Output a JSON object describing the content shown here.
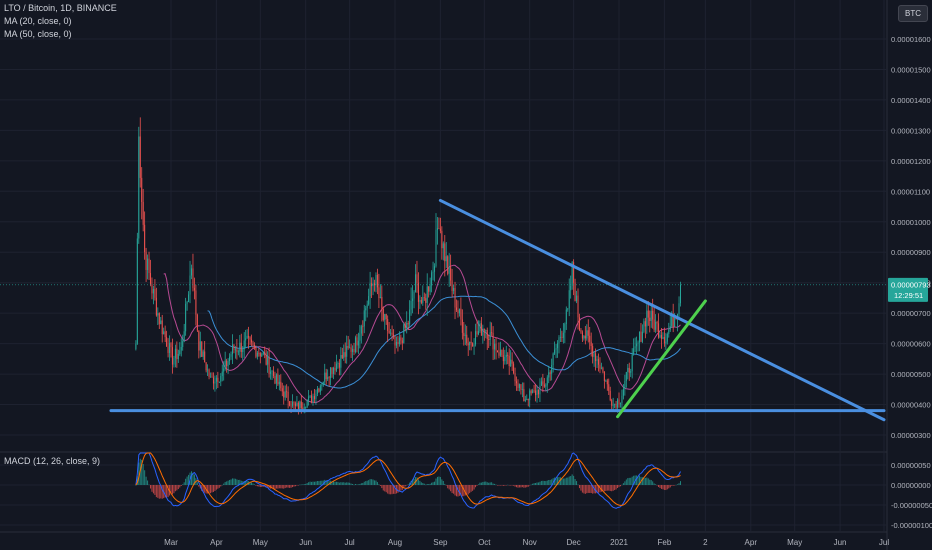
{
  "header": {
    "symbol_title": "LTO / Bitcoin, 1D, BINANCE",
    "ma20_label": "MA (20, close, 0)",
    "ma50_label": "MA (50, close, 0)",
    "currency_badge": "BTC"
  },
  "macd_panel": {
    "label": "MACD (12, 26, close, 9)"
  },
  "colors": {
    "background": "#131722",
    "grid": "#1e2230",
    "up_candle": "#26a69a",
    "down_candle": "#ef5350",
    "ma20": "#b74a93",
    "ma50": "#3b8fd6",
    "trendline_blue": "#4a8fe0",
    "trendline_green": "#4ed14e",
    "price_tag": "#26a69a",
    "axis_text": "#b2b5be",
    "macd_line": "#2962ff",
    "signal_line": "#ff6d00"
  },
  "chart_data": [
    {
      "type": "candlestick",
      "title": "LTO / Bitcoin, 1D, BINANCE",
      "y_axis": {
        "ticks": [
          3e-06,
          4e-06,
          5e-06,
          6e-06,
          7e-06,
          8e-06,
          9e-06,
          1e-05,
          1.1e-05,
          1.2e-05,
          1.3e-05,
          1.4e-05,
          1.5e-05,
          1.6e-05
        ],
        "tick_labels": [
          "0.00000300",
          "0.00000400",
          "0.00000500",
          "0.00000600",
          "0.00000700",
          "0.00000800",
          "0.00000900",
          "0.00001000",
          "0.00001100",
          "0.00001200",
          "0.00001300",
          "0.00001400",
          "0.00001500",
          "0.00001600"
        ],
        "range": [
          2.7e-06,
          1.62e-05
        ]
      },
      "x_axis": {
        "tick_labels": [
          "Mar",
          "Apr",
          "May",
          "Jun",
          "Jul",
          "Aug",
          "Sep",
          "Oct",
          "Nov",
          "Dec",
          "2021",
          "Feb",
          "2",
          "Apr",
          "May",
          "Jun",
          "Jul"
        ],
        "tick_dates": [
          "2020-03-01",
          "2020-04-01",
          "2020-05-01",
          "2020-06-01",
          "2020-07-01",
          "2020-08-01",
          "2020-09-01",
          "2020-10-01",
          "2020-11-01",
          "2020-12-01",
          "2021-01-01",
          "2021-02-01",
          "2021-03-01",
          "2021-04-01",
          "2021-05-01",
          "2021-06-01",
          "2021-07-01"
        ]
      },
      "last_price": {
        "value": 7.93e-06,
        "label": "0.00000793",
        "countdown": "12:29:51"
      },
      "waypoints": [
        {
          "date": "2020-02-06",
          "price": 6e-06
        },
        {
          "date": "2020-02-08",
          "price": 1.28e-05
        },
        {
          "date": "2020-02-12",
          "price": 9e-06
        },
        {
          "date": "2020-02-16",
          "price": 8e-06
        },
        {
          "date": "2020-02-22",
          "price": 6.8e-06
        },
        {
          "date": "2020-03-02",
          "price": 5.5e-06
        },
        {
          "date": "2020-03-08",
          "price": 5.8e-06
        },
        {
          "date": "2020-03-12",
          "price": 7.4e-06
        },
        {
          "date": "2020-03-15",
          "price": 8.6e-06
        },
        {
          "date": "2020-03-20",
          "price": 6e-06
        },
        {
          "date": "2020-03-28",
          "price": 4.8e-06
        },
        {
          "date": "2020-04-05",
          "price": 5e-06
        },
        {
          "date": "2020-04-12",
          "price": 5.8e-06
        },
        {
          "date": "2020-04-22",
          "price": 6e-06
        },
        {
          "date": "2020-05-02",
          "price": 5.7e-06
        },
        {
          "date": "2020-05-15",
          "price": 4.5e-06
        },
        {
          "date": "2020-05-25",
          "price": 3.9e-06
        },
        {
          "date": "2020-06-05",
          "price": 4.2e-06
        },
        {
          "date": "2020-06-15",
          "price": 5e-06
        },
        {
          "date": "2020-06-25",
          "price": 5.5e-06
        },
        {
          "date": "2020-07-05",
          "price": 6e-06
        },
        {
          "date": "2020-07-12",
          "price": 7.2e-06
        },
        {
          "date": "2020-07-18",
          "price": 8.2e-06
        },
        {
          "date": "2020-07-24",
          "price": 6.8e-06
        },
        {
          "date": "2020-08-02",
          "price": 5.8e-06
        },
        {
          "date": "2020-08-10",
          "price": 6.7e-06
        },
        {
          "date": "2020-08-15",
          "price": 8e-06
        },
        {
          "date": "2020-08-20",
          "price": 7.2e-06
        },
        {
          "date": "2020-08-27",
          "price": 8.5e-06
        },
        {
          "date": "2020-08-31",
          "price": 1.02e-05
        },
        {
          "date": "2020-09-02",
          "price": 9.4e-06
        },
        {
          "date": "2020-09-07",
          "price": 8.2e-06
        },
        {
          "date": "2020-09-12",
          "price": 7.2e-06
        },
        {
          "date": "2020-09-20",
          "price": 6e-06
        },
        {
          "date": "2020-10-01",
          "price": 6.6e-06
        },
        {
          "date": "2020-10-10",
          "price": 5.8e-06
        },
        {
          "date": "2020-10-20",
          "price": 5.2e-06
        },
        {
          "date": "2020-10-28",
          "price": 4.2e-06
        },
        {
          "date": "2020-11-05",
          "price": 4.4e-06
        },
        {
          "date": "2020-11-12",
          "price": 4.7e-06
        },
        {
          "date": "2020-11-20",
          "price": 6e-06
        },
        {
          "date": "2020-11-27",
          "price": 7e-06
        },
        {
          "date": "2020-11-30",
          "price": 8.4e-06
        },
        {
          "date": "2020-12-05",
          "price": 6.6e-06
        },
        {
          "date": "2020-12-12",
          "price": 6e-06
        },
        {
          "date": "2020-12-20",
          "price": 5.2e-06
        },
        {
          "date": "2020-12-28",
          "price": 4e-06
        },
        {
          "date": "2021-01-02",
          "price": 4.2e-06
        },
        {
          "date": "2021-01-08",
          "price": 5.2e-06
        },
        {
          "date": "2021-01-14",
          "price": 6e-06
        },
        {
          "date": "2021-01-20",
          "price": 7e-06
        },
        {
          "date": "2021-01-26",
          "price": 6.6e-06
        },
        {
          "date": "2021-02-02",
          "price": 6.2e-06
        },
        {
          "date": "2021-02-07",
          "price": 6.8e-06
        },
        {
          "date": "2021-02-10",
          "price": 7.2e-06
        },
        {
          "date": "2021-02-12",
          "price": 7.93e-06
        }
      ],
      "trendlines": [
        {
          "name": "descending",
          "color": "blue",
          "from": {
            "date": "2020-09-01",
            "price": 1.07e-05
          },
          "to": {
            "date": "2021-07-01",
            "price": 3.5e-06
          }
        },
        {
          "name": "support",
          "color": "blue",
          "from": {
            "date": "2020-01-20",
            "price": 3.8e-06
          },
          "to": {
            "date": "2021-07-01",
            "price": 3.8e-06
          }
        },
        {
          "name": "ascending",
          "color": "green",
          "from": {
            "date": "2020-12-31",
            "price": 3.6e-06
          },
          "to": {
            "date": "2021-03-01",
            "price": 7.4e-06
          }
        }
      ],
      "indicators": [
        "MA (20, close, 0)",
        "MA (50, close, 0)"
      ]
    },
    {
      "type": "macd",
      "title": "MACD (12, 26, close, 9)",
      "y_axis": {
        "ticks": [
          5e-07,
          0.0,
          -5e-07,
          -1e-06
        ],
        "tick_labels": [
          "0.00000050",
          "0.00000000",
          "-0.00000050",
          "-0.00000100"
        ],
        "range": [
          -1.15e-06,
          7e-07
        ]
      }
    }
  ]
}
